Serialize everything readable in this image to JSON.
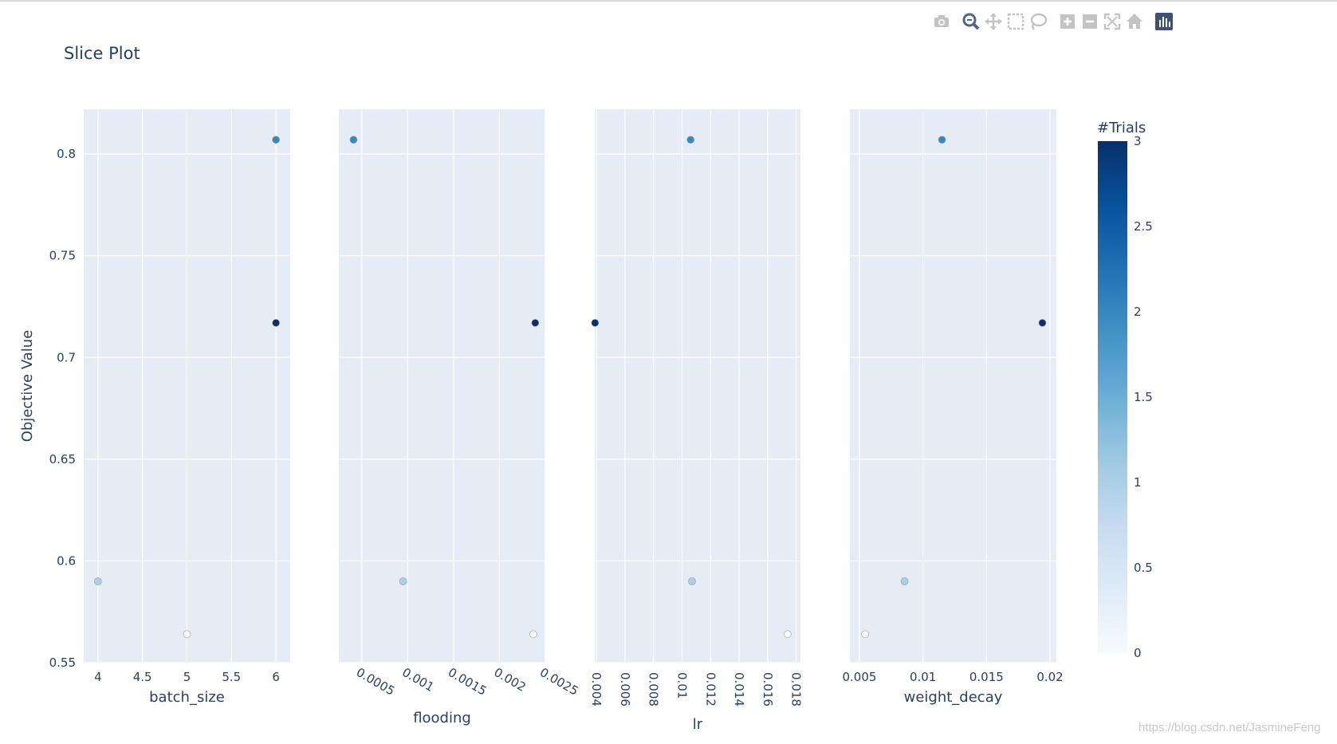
{
  "toolbar": {
    "buttons": [
      {
        "name": "camera-icon",
        "label": "Download plot as a png"
      },
      {
        "name": "zoom-icon",
        "label": "Zoom",
        "active": true
      },
      {
        "name": "pan-icon",
        "label": "Pan"
      },
      {
        "name": "box-select-icon",
        "label": "Box Select"
      },
      {
        "name": "lasso-select-icon",
        "label": "Lasso Select"
      },
      {
        "name": "zoom-in-icon",
        "label": "Zoom in"
      },
      {
        "name": "zoom-out-icon",
        "label": "Zoom out"
      },
      {
        "name": "autoscale-icon",
        "label": "Autoscale"
      },
      {
        "name": "reset-axes-icon",
        "label": "Reset axes"
      },
      {
        "name": "plotly-logo-icon",
        "label": "Produced with Plotly"
      }
    ]
  },
  "watermark": "https://blog.csdn.net/JasmineFeng",
  "chart_data": {
    "type": "scatter",
    "title": "Slice Plot",
    "ylabel": "Objective Value",
    "ylim": [
      0.55,
      0.822
    ],
    "yticks": [
      0.55,
      0.6,
      0.65,
      0.7,
      0.75,
      0.8
    ],
    "ytick_labels": [
      "0.55",
      "0.6",
      "0.65",
      "0.7",
      "0.75",
      "0.8"
    ],
    "colorbar": {
      "title": "#Trials",
      "range": [
        0,
        3
      ],
      "ticks": [
        0,
        0.5,
        1,
        1.5,
        2,
        2.5,
        3
      ],
      "tick_labels": [
        "0",
        "0.5",
        "1",
        "1.5",
        "2",
        "2.5",
        "3"
      ],
      "colorscale": [
        "#f7fbff",
        "#deebf7",
        "#c6dbef",
        "#9ecae1",
        "#6baed6",
        "#4292c6",
        "#2171b5",
        "#08519c",
        "#08306b"
      ]
    },
    "grid": true,
    "subplots": [
      {
        "xlabel": "batch_size",
        "xlim": [
          3.84,
          6.16
        ],
        "xticks": [
          4,
          4.5,
          5,
          5.5,
          6
        ],
        "xtick_labels": [
          "4",
          "4.5",
          "5",
          "5.5",
          "6"
        ],
        "x": [
          5,
          4,
          6,
          6
        ],
        "y": [
          0.564,
          0.59,
          0.807,
          0.717
        ],
        "trial": [
          0,
          1,
          2,
          3
        ]
      },
      {
        "xlabel": "flooding",
        "xlim": [
          0.00025,
          0.0025
        ],
        "xticks": [
          0.0005,
          0.001,
          0.0015,
          0.002,
          0.0025
        ],
        "xtick_labels": [
          "0.0005",
          "0.001",
          "0.0015",
          "0.002",
          "0.0025"
        ],
        "x": [
          0.00237,
          0.00095,
          0.00041,
          0.00239
        ],
        "y": [
          0.564,
          0.59,
          0.807,
          0.717
        ],
        "trial": [
          0,
          1,
          2,
          3
        ]
      },
      {
        "xlabel": "lr",
        "xlim": [
          0.00388,
          0.0183
        ],
        "xticks": [
          0.004,
          0.006,
          0.008,
          0.01,
          0.012,
          0.014,
          0.016,
          0.018
        ],
        "xtick_labels": [
          "0.004",
          "0.006",
          "0.008",
          "0.01",
          "0.012",
          "0.014",
          "0.016",
          "0.018"
        ],
        "x": [
          0.0174,
          0.0107,
          0.0106,
          0.0039
        ],
        "y": [
          0.564,
          0.59,
          0.807,
          0.717
        ],
        "trial": [
          0,
          1,
          2,
          3
        ]
      },
      {
        "xlabel": "weight_decay",
        "xlim": [
          0.00425,
          0.0205
        ],
        "xticks": [
          0.005,
          0.01,
          0.015,
          0.02
        ],
        "xtick_labels": [
          "0.005",
          "0.01",
          "0.015",
          "0.02"
        ],
        "x": [
          0.00545,
          0.00855,
          0.0115,
          0.0194
        ],
        "y": [
          0.564,
          0.59,
          0.807,
          0.717
        ],
        "trial": [
          0,
          1,
          2,
          3
        ]
      }
    ]
  }
}
